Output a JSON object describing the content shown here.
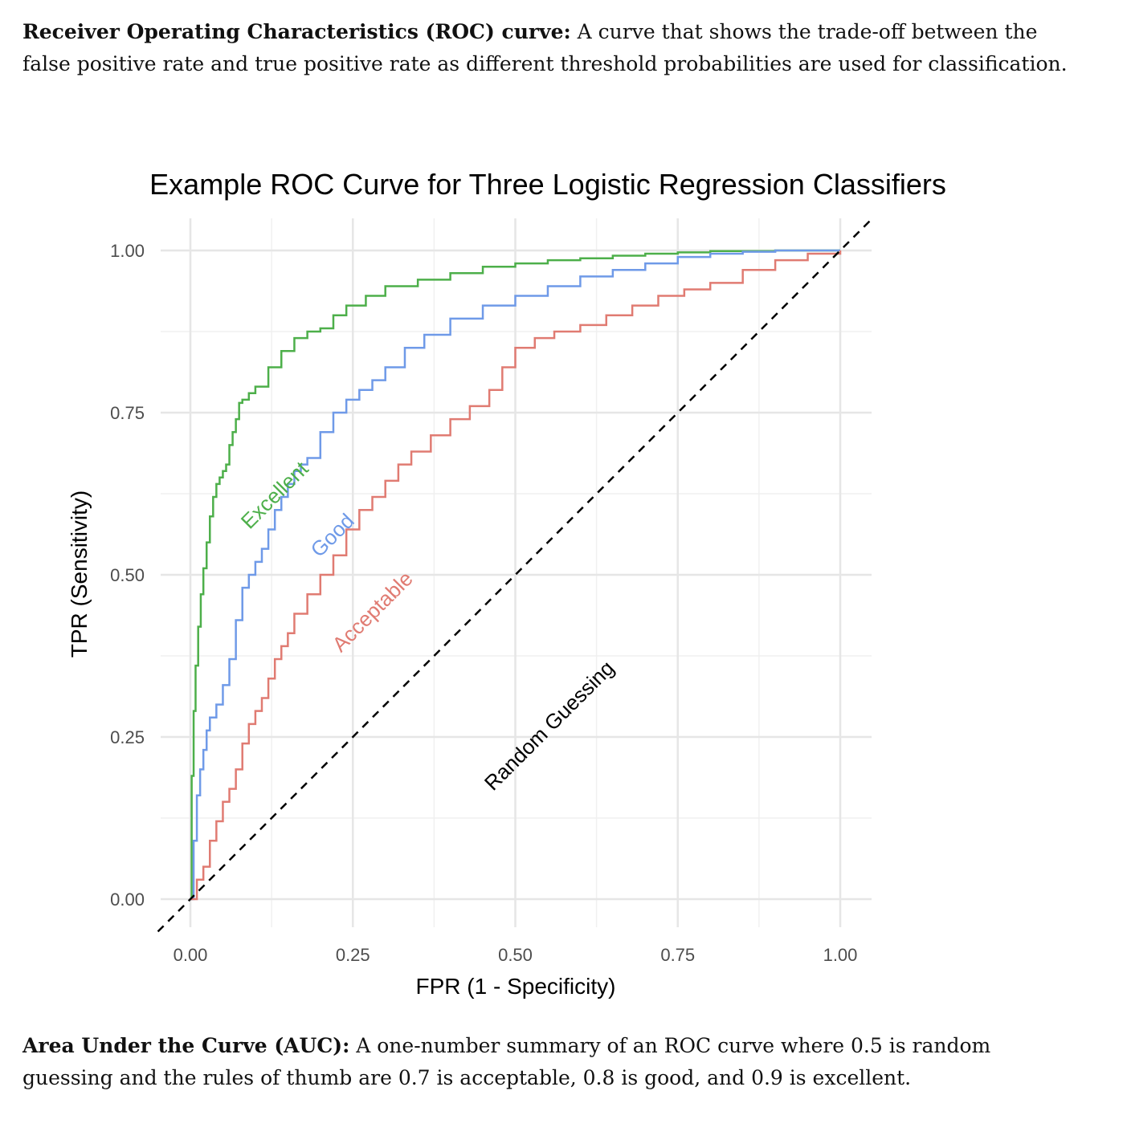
{
  "intro": {
    "term": "Receiver Operating Characteristics (ROC) curve:",
    "text": " A curve that shows the trade-off between the false positive rate and true positive rate as different threshold probabilities are used for classification."
  },
  "outro": {
    "term": "Area Under the Curve (AUC):",
    "text": " A one-number summary of an ROC curve where 0.5 is random guessing and the rules of thumb are 0.7 is acceptable, 0.8 is good, and 0.9 is excellent."
  },
  "chart_data": {
    "type": "line",
    "title": "Example ROC Curve for Three Logistic Regression Classifiers",
    "xlabel": "FPR (1 - Specificity)",
    "ylabel": "TPR (Sensitivity)",
    "xlim": [
      0,
      1
    ],
    "ylim": [
      0,
      1
    ],
    "xticks": [
      0,
      0.25,
      0.5,
      0.75,
      1
    ],
    "yticks": [
      0,
      0.25,
      0.5,
      0.75,
      1
    ],
    "xtick_labels": [
      "0.00",
      "0.25",
      "0.50",
      "0.75",
      "1.00"
    ],
    "ytick_labels": [
      "0.00",
      "0.25",
      "0.50",
      "0.75",
      "1.00"
    ],
    "grid": true,
    "legend": "none (direct labels on curves)",
    "series": [
      {
        "name": "Excellent",
        "label": "Excellent",
        "color": "#4daf4a",
        "x": [
          0,
          0.002,
          0.005,
          0.008,
          0.012,
          0.016,
          0.02,
          0.025,
          0.03,
          0.035,
          0.04,
          0.045,
          0.05,
          0.055,
          0.06,
          0.065,
          0.07,
          0.075,
          0.08,
          0.09,
          0.1,
          0.12,
          0.14,
          0.16,
          0.18,
          0.2,
          0.22,
          0.24,
          0.27,
          0.3,
          0.35,
          0.4,
          0.45,
          0.5,
          0.55,
          0.6,
          0.65,
          0.7,
          0.75,
          0.8,
          0.9,
          1.0
        ],
        "y": [
          0,
          0.19,
          0.29,
          0.36,
          0.42,
          0.47,
          0.51,
          0.55,
          0.59,
          0.62,
          0.64,
          0.65,
          0.66,
          0.67,
          0.7,
          0.72,
          0.74,
          0.765,
          0.77,
          0.78,
          0.79,
          0.82,
          0.845,
          0.865,
          0.875,
          0.88,
          0.9,
          0.915,
          0.93,
          0.945,
          0.955,
          0.965,
          0.975,
          0.98,
          0.985,
          0.988,
          0.992,
          0.995,
          0.997,
          0.999,
          1.0,
          1.0
        ]
      },
      {
        "name": "Good",
        "label": "Good",
        "color": "#6f9ae8",
        "x": [
          0,
          0.005,
          0.01,
          0.015,
          0.02,
          0.025,
          0.03,
          0.04,
          0.05,
          0.06,
          0.07,
          0.08,
          0.09,
          0.1,
          0.11,
          0.12,
          0.13,
          0.14,
          0.15,
          0.16,
          0.17,
          0.18,
          0.2,
          0.22,
          0.24,
          0.26,
          0.28,
          0.3,
          0.33,
          0.36,
          0.4,
          0.45,
          0.5,
          0.55,
          0.6,
          0.65,
          0.7,
          0.75,
          0.8,
          0.85,
          0.9,
          1.0
        ],
        "y": [
          0,
          0.09,
          0.16,
          0.2,
          0.23,
          0.26,
          0.28,
          0.3,
          0.33,
          0.37,
          0.43,
          0.48,
          0.5,
          0.52,
          0.54,
          0.57,
          0.6,
          0.62,
          0.64,
          0.66,
          0.67,
          0.68,
          0.72,
          0.75,
          0.77,
          0.785,
          0.8,
          0.82,
          0.85,
          0.87,
          0.895,
          0.915,
          0.93,
          0.945,
          0.96,
          0.97,
          0.98,
          0.99,
          0.995,
          0.998,
          1.0,
          1.0
        ]
      },
      {
        "name": "Acceptable",
        "label": "Acceptable",
        "color": "#e07b72",
        "x": [
          0,
          0.01,
          0.02,
          0.03,
          0.04,
          0.05,
          0.06,
          0.07,
          0.08,
          0.09,
          0.1,
          0.11,
          0.12,
          0.13,
          0.14,
          0.15,
          0.16,
          0.18,
          0.2,
          0.22,
          0.24,
          0.26,
          0.28,
          0.3,
          0.32,
          0.34,
          0.37,
          0.4,
          0.43,
          0.46,
          0.48,
          0.5,
          0.53,
          0.56,
          0.6,
          0.64,
          0.68,
          0.72,
          0.76,
          0.8,
          0.85,
          0.9,
          0.95,
          1.0
        ],
        "y": [
          0,
          0.03,
          0.05,
          0.09,
          0.12,
          0.15,
          0.17,
          0.2,
          0.24,
          0.27,
          0.29,
          0.31,
          0.34,
          0.37,
          0.39,
          0.41,
          0.44,
          0.47,
          0.5,
          0.53,
          0.57,
          0.6,
          0.62,
          0.645,
          0.67,
          0.69,
          0.715,
          0.74,
          0.76,
          0.785,
          0.82,
          0.85,
          0.865,
          0.875,
          0.885,
          0.9,
          0.915,
          0.93,
          0.94,
          0.95,
          0.97,
          0.985,
          0.995,
          1.0
        ]
      },
      {
        "name": "Random Guessing",
        "label": "Random Guessing",
        "color": "#000000",
        "style": "dashed",
        "x": [
          -0.05,
          1.05
        ],
        "y": [
          -0.05,
          1.05
        ]
      }
    ]
  }
}
